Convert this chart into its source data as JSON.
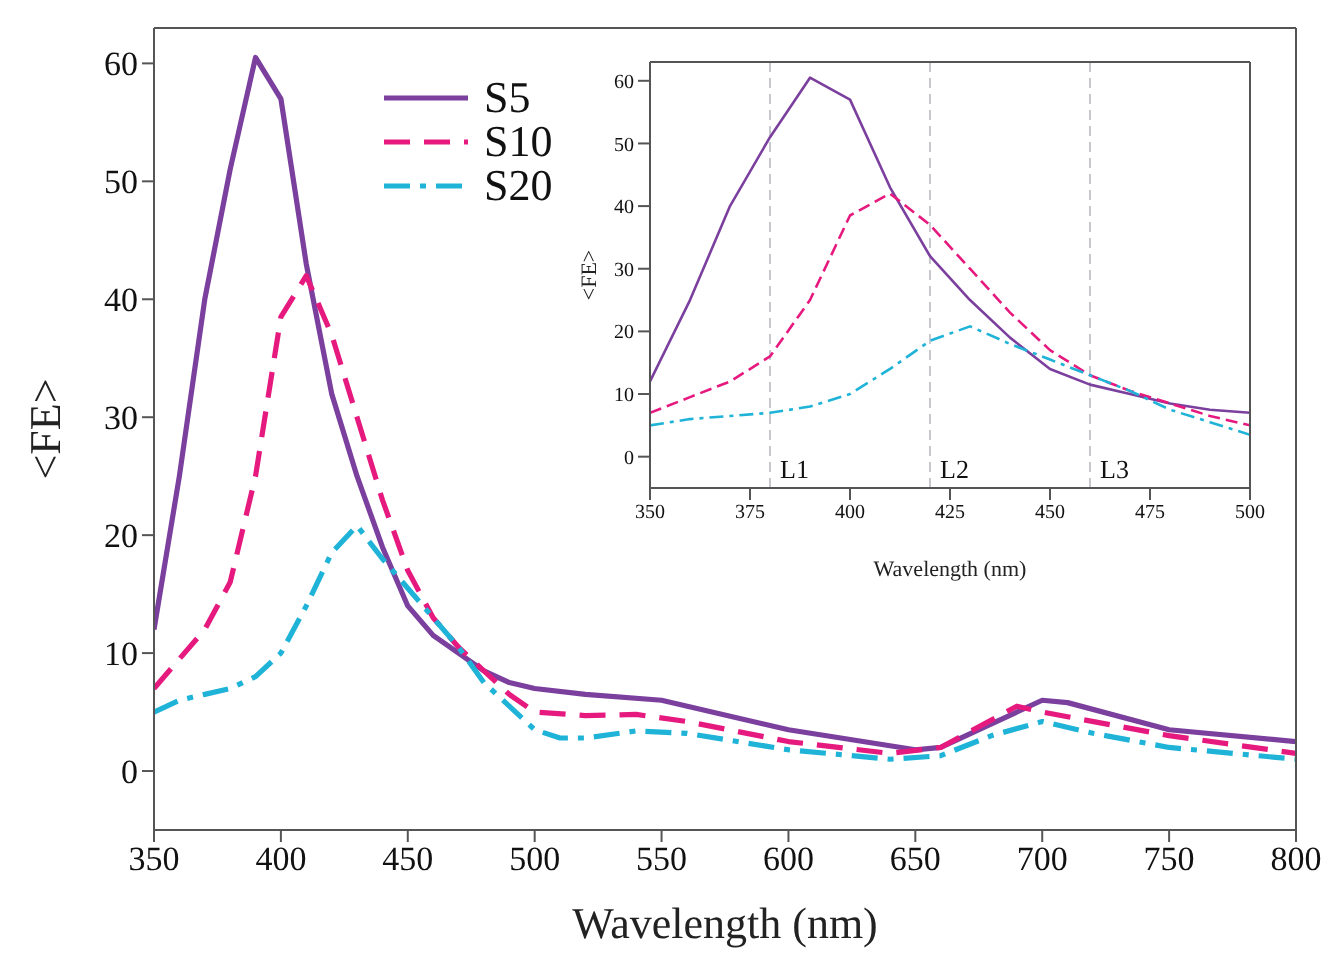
{
  "chart_data": [
    {
      "type": "line",
      "xlabel": "Wavelength (nm)",
      "ylabel": "<FE>",
      "xlim": [
        350,
        800
      ],
      "xticks": [
        350,
        400,
        450,
        500,
        550,
        600,
        650,
        700,
        750,
        800
      ],
      "ylim": [
        -5,
        63
      ],
      "yticks": [
        0,
        10,
        20,
        30,
        40,
        50,
        60
      ],
      "legend": "top left",
      "series": [
        {
          "name": "S5",
          "color": "#7b3f9e",
          "line_style": "solid",
          "x": [
            350,
            360,
            370,
            380,
            390,
            400,
            410,
            420,
            430,
            440,
            450,
            460,
            470,
            480,
            490,
            500,
            520,
            550,
            600,
            650,
            660,
            680,
            700,
            710,
            750,
            800
          ],
          "values": [
            12,
            25,
            40,
            51,
            60.5,
            57,
            43,
            32,
            25,
            19,
            14,
            11.5,
            10,
            8.5,
            7.5,
            7,
            6.5,
            6,
            3.5,
            1.8,
            2,
            4,
            6,
            5.8,
            3.5,
            2.5
          ]
        },
        {
          "name": "S10",
          "color": "#e6197f",
          "line_style": "dashed",
          "x": [
            350,
            360,
            370,
            380,
            390,
            400,
            410,
            420,
            430,
            440,
            450,
            460,
            470,
            480,
            490,
            500,
            520,
            540,
            560,
            600,
            640,
            660,
            690,
            700,
            750,
            800
          ],
          "values": [
            7,
            9.5,
            12,
            16,
            25,
            38.5,
            42,
            37,
            30,
            23,
            17,
            13,
            10.5,
            8.5,
            6.5,
            5,
            4.7,
            4.8,
            4.2,
            2.5,
            1.5,
            2,
            5.5,
            5,
            3,
            1.5
          ]
        },
        {
          "name": "S20",
          "color": "#1fb3d8",
          "line_style": "dashdot",
          "x": [
            350,
            360,
            370,
            380,
            390,
            400,
            410,
            420,
            430,
            440,
            450,
            460,
            470,
            480,
            490,
            500,
            510,
            520,
            540,
            560,
            600,
            640,
            660,
            680,
            700,
            720,
            750,
            800
          ],
          "values": [
            5,
            6,
            6.5,
            7,
            8,
            10,
            14,
            18.5,
            20.8,
            18,
            15.5,
            13,
            10.5,
            7.5,
            5.5,
            3.5,
            2.8,
            2.8,
            3.4,
            3.2,
            1.8,
            1,
            1.3,
            3,
            4.2,
            3.2,
            2,
            1
          ]
        }
      ]
    },
    {
      "type": "line",
      "xlabel": "Wavelength (nm)",
      "ylabel": "<FE>",
      "xlim": [
        350,
        500
      ],
      "xticks": [
        350,
        375,
        400,
        425,
        450,
        475,
        500
      ],
      "ylim": [
        -5,
        63
      ],
      "yticks": [
        0,
        10,
        20,
        30,
        40,
        50,
        60
      ],
      "ref_lines": [
        {
          "axis": "x",
          "value": 380,
          "label": "L1",
          "color": "#c8c8d0",
          "line_style": "dashed"
        },
        {
          "axis": "x",
          "value": 420,
          "label": "L2",
          "color": "#c8c8d0",
          "line_style": "dashed"
        },
        {
          "axis": "x",
          "value": 460,
          "label": "L3",
          "color": "#c8c8d0",
          "line_style": "dashed"
        }
      ],
      "series": [
        {
          "color": "#7b3f9e",
          "line_style": "solid",
          "x": [
            350,
            360,
            370,
            380,
            390,
            400,
            410,
            420,
            430,
            440,
            450,
            460,
            470,
            480,
            490,
            500
          ],
          "values": [
            12,
            25,
            40,
            51,
            60.5,
            57,
            43,
            32,
            25,
            19,
            14,
            11.5,
            10,
            8.5,
            7.5,
            7
          ]
        },
        {
          "color": "#e6197f",
          "line_style": "dashed",
          "x": [
            350,
            360,
            370,
            380,
            390,
            400,
            410,
            420,
            430,
            440,
            450,
            460,
            470,
            480,
            490,
            500
          ],
          "values": [
            7,
            9.5,
            12,
            16,
            25,
            38.5,
            42,
            37,
            30,
            23,
            17,
            13,
            10.5,
            8.5,
            6.5,
            5
          ]
        },
        {
          "color": "#1fb3d8",
          "line_style": "dashdot",
          "x": [
            350,
            360,
            370,
            380,
            390,
            400,
            410,
            420,
            430,
            440,
            450,
            460,
            470,
            480,
            490,
            500
          ],
          "values": [
            5,
            6,
            6.5,
            7,
            8,
            10,
            14,
            18.5,
            20.8,
            18,
            15.5,
            13,
            10.5,
            7.5,
            5.5,
            3.5
          ]
        }
      ]
    }
  ]
}
